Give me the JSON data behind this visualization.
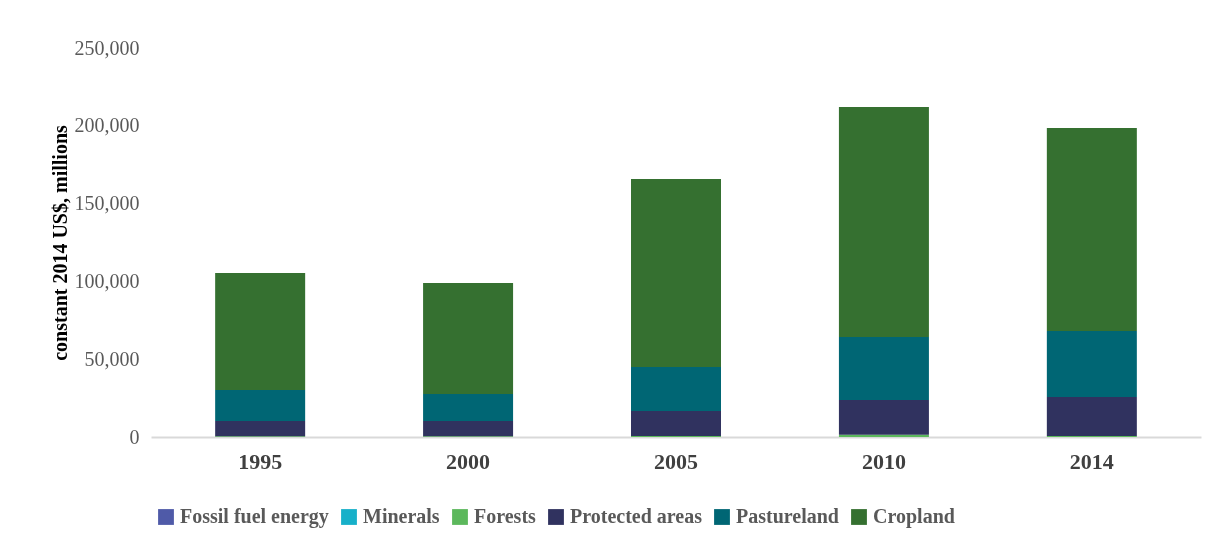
{
  "chart_data": {
    "type": "bar",
    "stacked": true,
    "ylabel": "constant 2014 US$, millions",
    "categories": [
      "1995",
      "2000",
      "2005",
      "2010",
      "2014"
    ],
    "series": [
      {
        "name": "Fossil fuel energy",
        "color": "#4f5aa8",
        "values": [
          0,
          0,
          0,
          0,
          0
        ]
      },
      {
        "name": "Minerals",
        "color": "#17b0c9",
        "values": [
          0,
          0,
          0,
          0,
          0
        ]
      },
      {
        "name": "Forests",
        "color": "#5cb85c",
        "values": [
          500,
          500,
          700,
          1500,
          700
        ]
      },
      {
        "name": "Protected areas",
        "color": "#30325f",
        "values": [
          9800,
          9800,
          16000,
          22300,
          25000
        ]
      },
      {
        "name": "Pastureland",
        "color": "#006674",
        "values": [
          19900,
          17300,
          28300,
          40500,
          42400
        ]
      },
      {
        "name": "Cropland",
        "color": "#357030",
        "values": [
          75200,
          71400,
          120800,
          147800,
          130500
        ]
      }
    ],
    "ylim": [
      0,
      250000
    ],
    "yticks": [
      0,
      {
        "value": 50000,
        "label": "50,000"
      },
      {
        "value": 100000,
        "label": "100,000"
      },
      {
        "value": 150000,
        "label": "150,000"
      },
      {
        "value": 200000,
        "label": "200,000"
      },
      {
        "value": 250000,
        "label": "250,000"
      }
    ],
    "grid": false,
    "legend": "bottom"
  }
}
